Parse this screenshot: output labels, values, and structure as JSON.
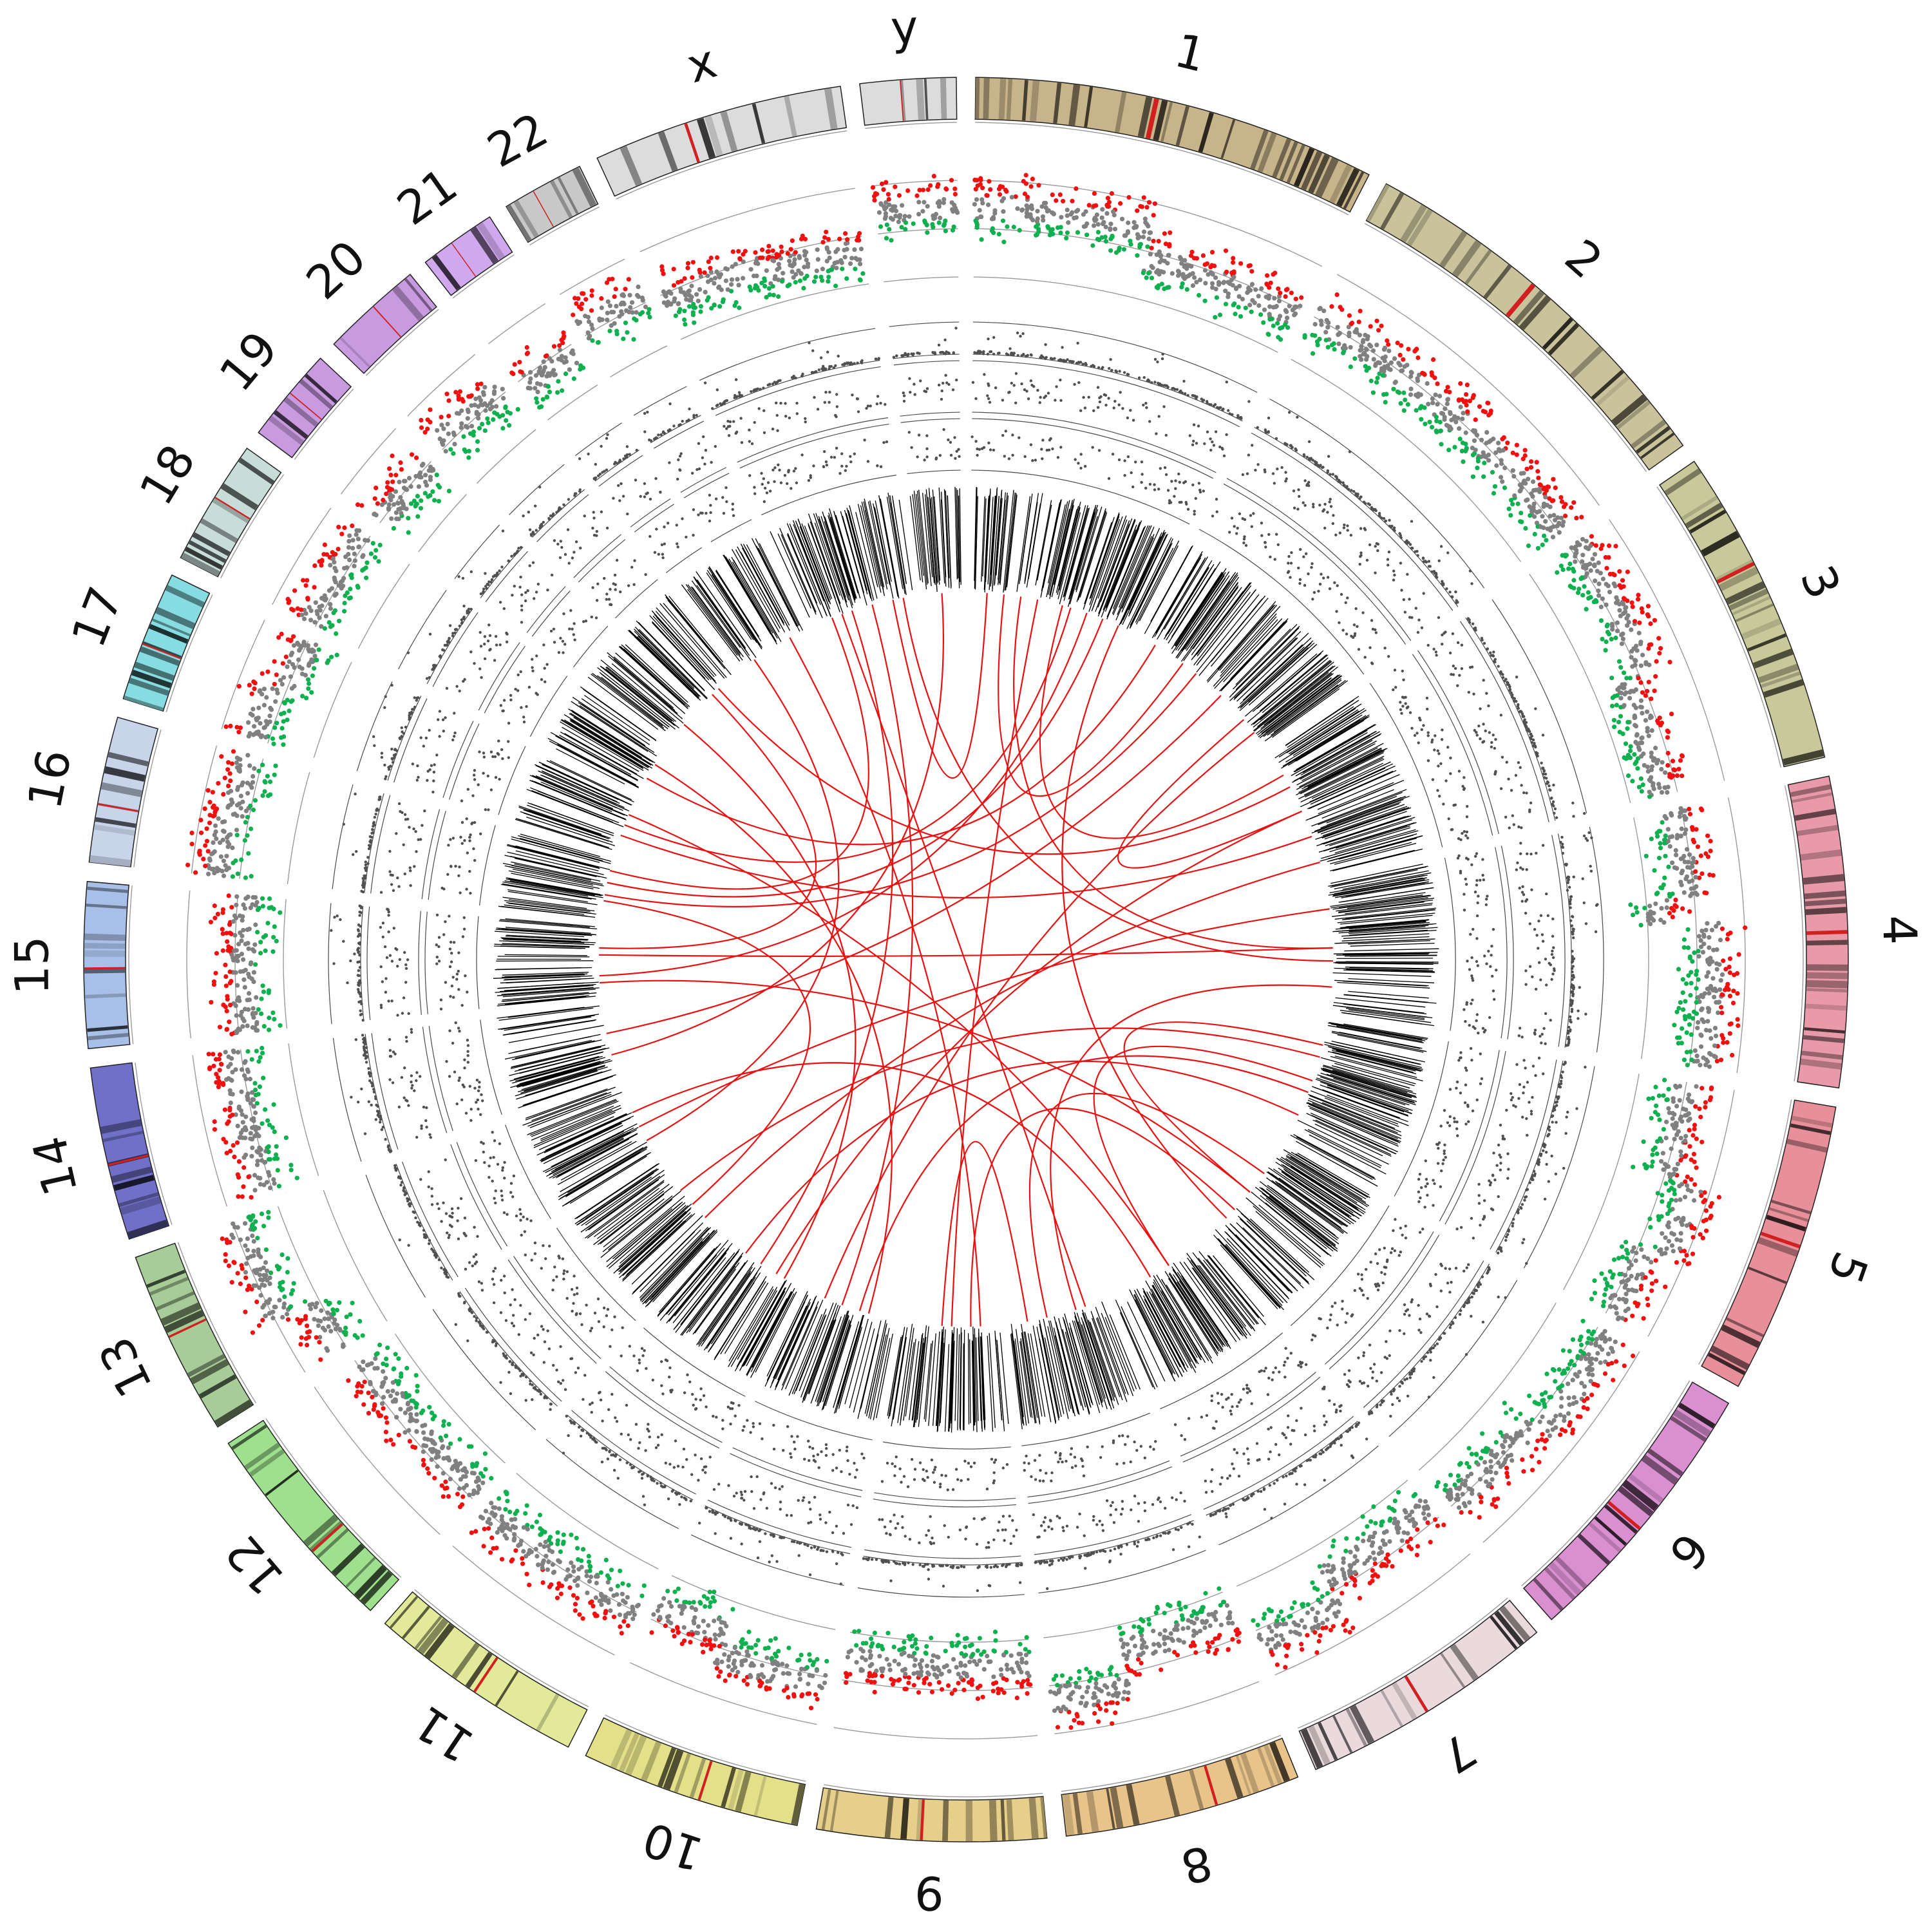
{
  "chart_data": {
    "type": "circos",
    "title": "",
    "chromosomes": [
      {
        "id": "1",
        "label": "1",
        "length": 249,
        "color": "#c8b48a"
      },
      {
        "id": "2",
        "label": "2",
        "length": 243,
        "color": "#c9c29a"
      },
      {
        "id": "3",
        "label": "3",
        "length": 198,
        "color": "#c8c89a"
      },
      {
        "id": "4",
        "label": "4",
        "length": 191,
        "color": "#e89aa8"
      },
      {
        "id": "5",
        "label": "5",
        "length": 181,
        "color": "#e8909a"
      },
      {
        "id": "6",
        "label": "6",
        "length": 171,
        "color": "#d98fd0"
      },
      {
        "id": "7",
        "label": "7",
        "length": 159,
        "color": "#eadade"
      },
      {
        "id": "8",
        "label": "8",
        "length": 146,
        "color": "#e8c48a"
      },
      {
        "id": "9",
        "label": "9",
        "length": 141,
        "color": "#e6cf8a"
      },
      {
        "id": "10",
        "label": "10",
        "length": 136,
        "color": "#e4e08a"
      },
      {
        "id": "11",
        "label": "11",
        "length": 135,
        "color": "#e2ea9a"
      },
      {
        "id": "12",
        "label": "12",
        "length": 134,
        "color": "#9ee08e"
      },
      {
        "id": "13",
        "label": "13",
        "length": 115,
        "color": "#a8cc98"
      },
      {
        "id": "14",
        "label": "14",
        "length": 107,
        "color": "#7070c8"
      },
      {
        "id": "15",
        "label": "15",
        "length": 102,
        "color": "#a8c0e8"
      },
      {
        "id": "16",
        "label": "16",
        "length": 90,
        "color": "#c8d4ea"
      },
      {
        "id": "17",
        "label": "17",
        "length": 81,
        "color": "#86dce0"
      },
      {
        "id": "18",
        "label": "18",
        "length": 78,
        "color": "#c8dcd8"
      },
      {
        "id": "19",
        "label": "19",
        "length": 59,
        "color": "#c89ae0"
      },
      {
        "id": "20",
        "label": "20",
        "length": 63,
        "color": "#c89ae0"
      },
      {
        "id": "21",
        "label": "21",
        "length": 48,
        "color": "#d0a8ee"
      },
      {
        "id": "22",
        "label": "22",
        "length": 51,
        "color": "#c8c8c8"
      },
      {
        "id": "x",
        "label": "x",
        "length": 155,
        "color": "#dcdcdc"
      },
      {
        "id": "y",
        "label": "y",
        "length": 59,
        "color": "#dcdcdc"
      }
    ],
    "colors": {
      "gain": "#f01010",
      "loss": "#10b050",
      "neutral": "#808080",
      "scatter": "#505050",
      "link": "#e81010",
      "rearrangement": "#000000"
    },
    "copy_number_profile": [
      {
        "chr": "1",
        "segments": [
          [
            0,
            0.52,
            0.6
          ],
          [
            0.52,
            1,
            0.4
          ]
        ]
      },
      {
        "chr": "2",
        "segments": [
          [
            0,
            1,
            0.45
          ]
        ]
      },
      {
        "chr": "3",
        "segments": [
          [
            0,
            0.55,
            0.5
          ],
          [
            0.55,
            1,
            0.35
          ]
        ]
      },
      {
        "chr": "4",
        "segments": [
          [
            0,
            0.35,
            0.4
          ],
          [
            0.35,
            0.45,
            0.2
          ],
          [
            0.45,
            1,
            0.55
          ]
        ]
      },
      {
        "chr": "5",
        "segments": [
          [
            0,
            0.4,
            0.45
          ],
          [
            0.4,
            0.7,
            0.65
          ],
          [
            0.7,
            1,
            0.5
          ]
        ]
      },
      {
        "chr": "6",
        "segments": [
          [
            0,
            0.5,
            0.55
          ],
          [
            0.5,
            1,
            0.45
          ]
        ]
      },
      {
        "chr": "7",
        "segments": [
          [
            0,
            0.6,
            0.35
          ],
          [
            0.6,
            1,
            0.55
          ]
        ]
      },
      {
        "chr": "8",
        "segments": [
          [
            0,
            0.6,
            0.3
          ],
          [
            0.6,
            1,
            0.55
          ]
        ]
      },
      {
        "chr": "9",
        "segments": [
          [
            0,
            1,
            0.3
          ]
        ]
      },
      {
        "chr": "10",
        "segments": [
          [
            0,
            0.6,
            0.5
          ],
          [
            0.6,
            1,
            0.35
          ]
        ]
      },
      {
        "chr": "11",
        "segments": [
          [
            0,
            1,
            0.45
          ]
        ]
      },
      {
        "chr": "12",
        "segments": [
          [
            0,
            1,
            0.4
          ]
        ]
      },
      {
        "chr": "13",
        "segments": [
          [
            0,
            0.35,
            0.5
          ],
          [
            0.35,
            1,
            0.75
          ]
        ]
      },
      {
        "chr": "14",
        "segments": [
          [
            0,
            1,
            0.5
          ]
        ]
      },
      {
        "chr": "15",
        "segments": [
          [
            0,
            1,
            0.4
          ]
        ]
      },
      {
        "chr": "16",
        "segments": [
          [
            0,
            0.5,
            0.6
          ],
          [
            0.5,
            1,
            0.55
          ]
        ]
      },
      {
        "chr": "17",
        "segments": [
          [
            0,
            0.5,
            0.55
          ],
          [
            0.5,
            1,
            0.45
          ]
        ]
      },
      {
        "chr": "18",
        "segments": [
          [
            0,
            1,
            0.5
          ]
        ]
      },
      {
        "chr": "19",
        "segments": [
          [
            0,
            1,
            0.45
          ]
        ]
      },
      {
        "chr": "20",
        "segments": [
          [
            0,
            1,
            0.5
          ]
        ]
      },
      {
        "chr": "21",
        "segments": [
          [
            0,
            1,
            0.4
          ]
        ]
      },
      {
        "chr": "22",
        "segments": [
          [
            0,
            1,
            0.5
          ]
        ]
      },
      {
        "chr": "x",
        "segments": [
          [
            0,
            0.5,
            0.4
          ],
          [
            0.5,
            1,
            0.35
          ]
        ]
      },
      {
        "chr": "y",
        "segments": [
          [
            0,
            1,
            0.6
          ]
        ]
      }
    ],
    "links": [
      [
        "1",
        0.1,
        "x",
        0.8
      ],
      [
        "1",
        0.2,
        "2",
        0.3
      ],
      [
        "1",
        0.3,
        "4",
        0.5
      ],
      [
        "1",
        0.4,
        "9",
        0.5
      ],
      [
        "1",
        0.55,
        "3",
        0.2
      ],
      [
        "1",
        0.6,
        "17",
        0.5
      ],
      [
        "1",
        0.7,
        "15",
        0.3
      ],
      [
        "1",
        0.8,
        "16",
        0.6
      ],
      [
        "2",
        0.1,
        "18",
        0.3
      ],
      [
        "2",
        0.4,
        "16",
        0.4
      ],
      [
        "2",
        0.6,
        "14",
        0.6
      ],
      [
        "2",
        0.8,
        "3",
        0.5
      ],
      [
        "3",
        0.3,
        "20",
        0.5
      ],
      [
        "3",
        0.7,
        "17",
        0.3
      ],
      [
        "4",
        0.2,
        "13",
        0.4
      ],
      [
        "4",
        0.5,
        "15",
        0.6
      ],
      [
        "4",
        0.8,
        "8",
        0.3
      ],
      [
        "5",
        0.2,
        "6",
        0.5
      ],
      [
        "5",
        0.3,
        "12",
        0.6
      ],
      [
        "5",
        0.5,
        "7",
        0.4
      ],
      [
        "5",
        0.6,
        "10",
        0.4
      ],
      [
        "5",
        0.8,
        "11",
        0.7
      ],
      [
        "6",
        0.3,
        "8",
        0.6
      ],
      [
        "6",
        0.7,
        "9",
        0.3
      ],
      [
        "7",
        0.4,
        "17",
        0.7
      ],
      [
        "7",
        0.6,
        "13",
        0.6
      ],
      [
        "8",
        0.2,
        "x",
        0.3
      ],
      [
        "8",
        0.8,
        "9",
        0.6
      ],
      [
        "9",
        0.2,
        "22",
        0.5
      ],
      [
        "10",
        0.3,
        "18",
        0.6
      ],
      [
        "10",
        0.6,
        "x",
        0.6
      ],
      [
        "11",
        0.2,
        "19",
        0.5
      ],
      [
        "11",
        0.5,
        "x",
        0.4
      ],
      [
        "12",
        0.4,
        "16",
        0.3
      ],
      [
        "13",
        0.2,
        "21",
        0.5
      ],
      [
        "14",
        0.3,
        "y",
        0.5
      ],
      [
        "15",
        0.7,
        "20",
        0.3
      ],
      [
        "16",
        0.8,
        "x",
        0.2
      ],
      [
        "2",
        0.9,
        "10",
        0.8
      ],
      [
        "3",
        0.9,
        "12",
        0.2
      ],
      [
        "4",
        0.6,
        "x",
        0.9
      ],
      [
        "6",
        0.5,
        "15",
        0.2
      ],
      [
        "1",
        0.9,
        "6",
        0.8
      ],
      [
        "3",
        0.5,
        "11",
        0.3
      ]
    ]
  }
}
